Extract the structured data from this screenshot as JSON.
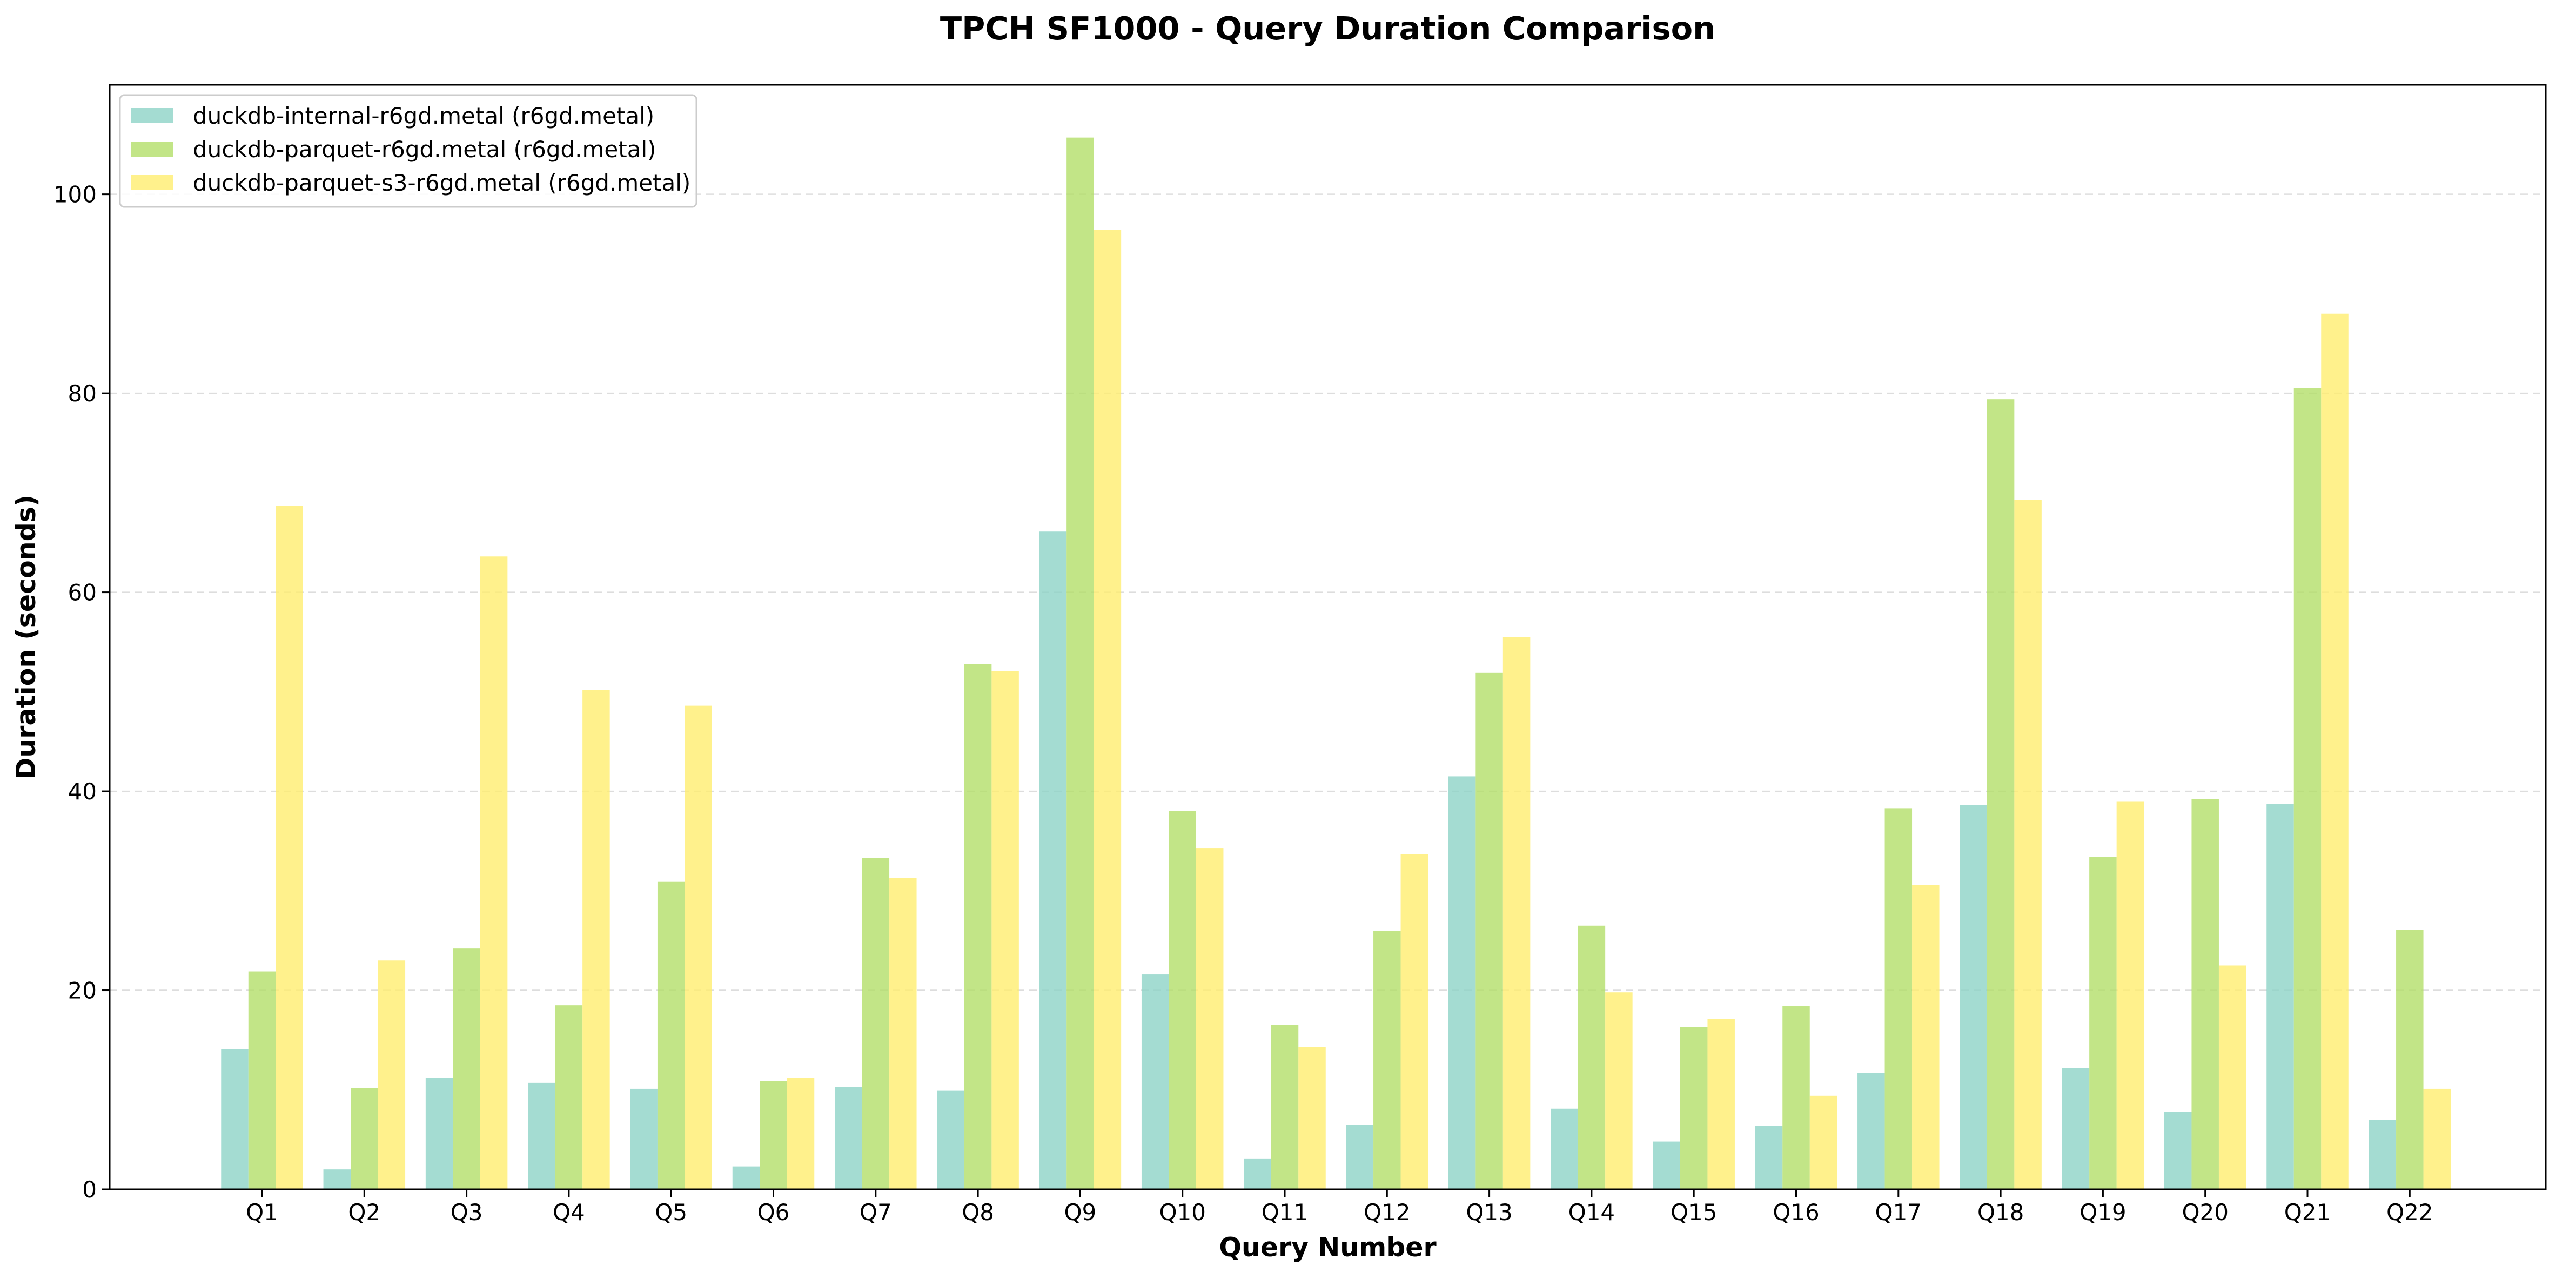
{
  "chart_data": {
    "type": "bar",
    "title": "TPCH SF1000 - Query Duration Comparison",
    "xlabel": "Query Number",
    "ylabel": "Duration (seconds)",
    "ylim": [
      0,
      111
    ],
    "yticks": [
      0,
      20,
      40,
      60,
      80,
      100
    ],
    "grid": "y-dashed",
    "legend_position": "top-left",
    "categories": [
      "Q1",
      "Q2",
      "Q3",
      "Q4",
      "Q5",
      "Q6",
      "Q7",
      "Q8",
      "Q9",
      "Q10",
      "Q11",
      "Q12",
      "Q13",
      "Q14",
      "Q15",
      "Q16",
      "Q17",
      "Q18",
      "Q19",
      "Q20",
      "Q21",
      "Q22"
    ],
    "series": [
      {
        "name": "duckdb-internal-r6gd.metal (r6gd.metal)",
        "color": "#8dd3c7",
        "values": [
          14.1,
          2.0,
          11.2,
          10.7,
          10.1,
          2.3,
          10.3,
          9.9,
          66.1,
          21.6,
          3.1,
          6.5,
          41.5,
          8.1,
          4.8,
          6.4,
          11.7,
          38.6,
          12.2,
          7.8,
          38.7,
          7.0
        ]
      },
      {
        "name": "duckdb-parquet-r6gd.metal (r6gd.metal)",
        "color": "#b3de69",
        "values": [
          21.9,
          10.2,
          24.2,
          18.5,
          30.9,
          10.9,
          33.3,
          52.8,
          105.7,
          38.0,
          16.5,
          26.0,
          51.9,
          26.5,
          16.3,
          18.4,
          38.3,
          79.4,
          33.4,
          39.2,
          80.5,
          26.1
        ]
      },
      {
        "name": "duckdb-parquet-s3-r6gd.metal (r6gd.metal)",
        "color": "#ffed6f",
        "values": [
          68.7,
          23.0,
          63.6,
          50.2,
          48.6,
          11.2,
          31.3,
          52.1,
          96.4,
          34.3,
          14.3,
          33.7,
          55.5,
          19.8,
          17.1,
          9.4,
          30.6,
          69.3,
          39.0,
          22.5,
          88.0,
          10.1
        ]
      }
    ]
  }
}
